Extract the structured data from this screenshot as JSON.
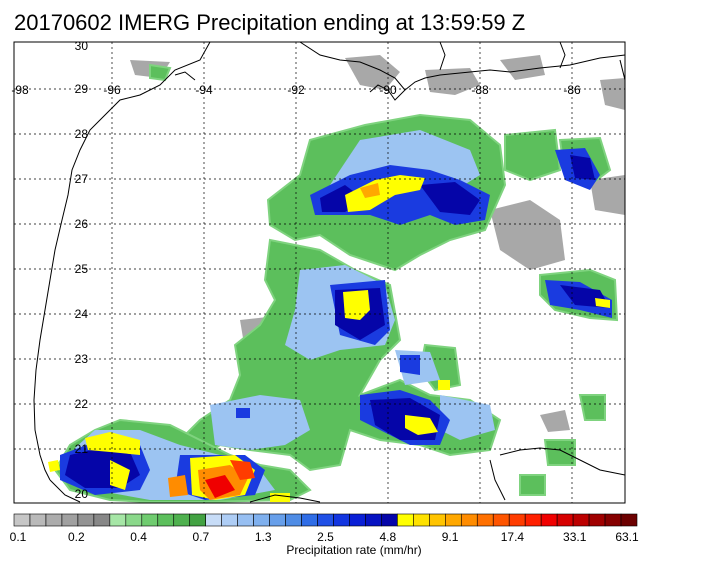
{
  "title": "20170602 IMERG Precipitation ending at 13:59:59 Z",
  "colorbar": {
    "title": "Precipitation rate (mm/hr)",
    "labels": [
      "0.1",
      "0.2",
      "0.4",
      "0.7",
      "1.3",
      "2.5",
      "4.8",
      "9.1",
      "17.4",
      "33.1",
      "63.1"
    ],
    "colors": [
      "#c6c6c6",
      "#b9b9b9",
      "#acacac",
      "#a0a0a0",
      "#939393",
      "#878787",
      "#a6e6a6",
      "#8ad88a",
      "#70cc70",
      "#5cbf5c",
      "#4fb14f",
      "#43a243",
      "#c7dcf7",
      "#aecdf5",
      "#97bff2",
      "#7fb0ee",
      "#679fea",
      "#4f8ce5",
      "#2f6de6",
      "#2050e6",
      "#1235e0",
      "#0a1fd6",
      "#0612c2",
      "#0505a8",
      "#ffff00",
      "#ffe200",
      "#ffc400",
      "#ffa800",
      "#ff8c00",
      "#ff7000",
      "#ff5500",
      "#ff3c00",
      "#ff2000",
      "#f00000",
      "#d60000",
      "#bc0000",
      "#a00000",
      "#860000",
      "#6c0000"
    ]
  },
  "map": {
    "lat_labels": [
      "30",
      "29",
      "28",
      "27",
      "26",
      "25",
      "24",
      "23",
      "22",
      "21",
      "20"
    ],
    "lon_labels": [
      "-98",
      "-96",
      "-94",
      "-92",
      "-90",
      "-88",
      "-86"
    ],
    "legend_colors": {
      "gray": "#9e9e9e",
      "green": "#5cbf5c",
      "light_blue": "#9cc4f2",
      "blue": "#1a3be0",
      "navy": "#0505a8",
      "yellow": "#ffff00",
      "orange": "#ff8c00",
      "red": "#f00000"
    }
  }
}
